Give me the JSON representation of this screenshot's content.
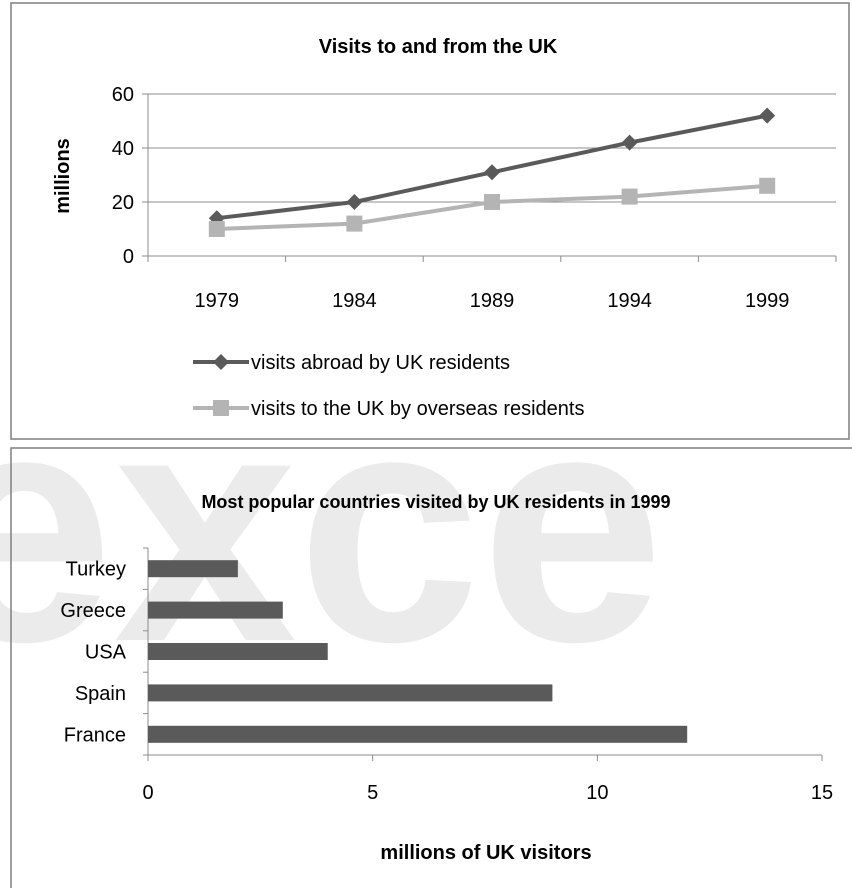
{
  "colors": {
    "series_dark": "#5a5a5a",
    "series_light": "#b4b4b4",
    "bar": "#5a5a5a",
    "grid": "#8c8c8c",
    "border": "#7f7f7f",
    "watermark": "#ebebeb"
  },
  "watermark_text": "exce",
  "chart_data": [
    {
      "type": "line",
      "title": "Visits to and from the UK",
      "xlabel": "",
      "ylabel": "millions",
      "categories": [
        "1979",
        "1984",
        "1989",
        "1994",
        "1999"
      ],
      "ylim": [
        0,
        60
      ],
      "yticks": [
        "0",
        "20",
        "40",
        "60"
      ],
      "grid": true,
      "legend_position": "bottom",
      "series": [
        {
          "name": "visits abroad by UK residents",
          "values": [
            14,
            20,
            31,
            42,
            52
          ],
          "marker": "diamond"
        },
        {
          "name": "visits to the UK by overseas residents",
          "values": [
            10,
            12,
            20,
            22,
            26
          ],
          "marker": "square"
        }
      ]
    },
    {
      "type": "bar",
      "orientation": "horizontal",
      "title": "Most popular countries visited by UK residents in  1999",
      "xlabel": "millions of UK visitors",
      "ylabel": "",
      "categories": [
        "Turkey",
        "Greece",
        "USA",
        "Spain",
        "France"
      ],
      "values": [
        2,
        3,
        4,
        9,
        12
      ],
      "xlim": [
        0,
        15
      ],
      "xticks": [
        "0",
        "5",
        "10",
        "15"
      ],
      "grid": false
    }
  ]
}
